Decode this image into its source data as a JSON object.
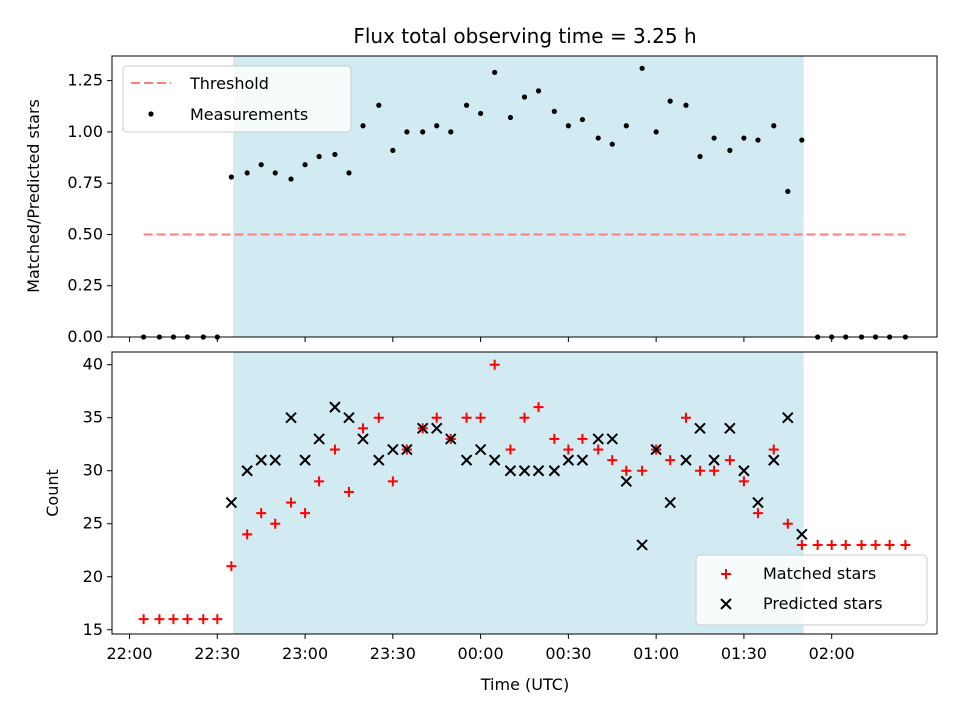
{
  "chart_data": [
    {
      "type": "scatter",
      "title": "Flux total observing time = 3.25 h",
      "ylabel": "Matched/Predicted stars",
      "ylim": [
        0,
        1.37
      ],
      "yticks": [
        "0.00",
        "0.25",
        "0.50",
        "0.75",
        "1.00",
        "1.25"
      ],
      "xlim_hours": [
        21.9,
        26.6
      ],
      "shaded_span_hours": [
        22.59,
        25.84
      ],
      "shade_color": "#add8e6",
      "legend_location": "upper left",
      "threshold": {
        "name": "Threshold",
        "value": 0.5,
        "x_range_hours": [
          22.08,
          26.42
        ],
        "color": "#ff7f7f"
      },
      "series": [
        {
          "name": "Measurements",
          "color": "#000000",
          "x_hours": [
            22.08,
            22.17,
            22.25,
            22.33,
            22.42,
            22.5,
            22.58,
            22.67,
            22.75,
            22.83,
            22.92,
            23.0,
            23.08,
            23.17,
            23.25,
            23.33,
            23.42,
            23.5,
            23.58,
            23.67,
            23.75,
            23.83,
            23.92,
            24.0,
            24.08,
            24.17,
            24.25,
            24.33,
            24.42,
            24.5,
            24.58,
            24.67,
            24.75,
            24.83,
            24.92,
            25.0,
            25.08,
            25.17,
            25.25,
            25.33,
            25.42,
            25.5,
            25.58,
            25.67,
            25.75,
            25.83,
            25.92,
            26.0,
            26.08,
            26.17,
            26.25,
            26.33,
            26.42
          ],
          "y": [
            0,
            0,
            0,
            0,
            0,
            0,
            0.78,
            0.8,
            0.84,
            0.8,
            0.77,
            0.84,
            0.88,
            0.89,
            0.8,
            1.03,
            1.13,
            0.91,
            1.0,
            1.0,
            1.03,
            1.0,
            1.13,
            1.09,
            1.29,
            1.07,
            1.17,
            1.2,
            1.1,
            1.03,
            1.06,
            0.97,
            0.94,
            1.03,
            1.31,
            1.0,
            1.15,
            1.13,
            0.88,
            0.97,
            0.91,
            0.97,
            0.96,
            1.03,
            0.71,
            0.96,
            0,
            0,
            0,
            0,
            0,
            0,
            0
          ]
        }
      ]
    },
    {
      "type": "scatter",
      "xlabel": "Time (UTC)",
      "ylabel": "Count",
      "ylim": [
        14.6,
        41.2
      ],
      "yticks": [
        "15",
        "20",
        "25",
        "30",
        "35",
        "40"
      ],
      "xticks_hours": [
        22.0,
        22.5,
        23.0,
        23.5,
        24.0,
        24.5,
        25.0,
        25.5,
        26.0
      ],
      "xtick_labels": [
        "22:00",
        "22:30",
        "23:00",
        "23:30",
        "00:00",
        "00:30",
        "01:00",
        "01:30",
        "02:00"
      ],
      "xlim_hours": [
        21.9,
        26.6
      ],
      "shaded_span_hours": [
        22.59,
        25.84
      ],
      "legend_location": "lower right",
      "series": [
        {
          "name": "Matched stars",
          "marker": "plus",
          "color": "#ff0000",
          "x_hours": [
            22.08,
            22.17,
            22.25,
            22.33,
            22.42,
            22.5,
            22.58,
            22.67,
            22.75,
            22.83,
            22.92,
            23.0,
            23.08,
            23.17,
            23.25,
            23.33,
            23.42,
            23.5,
            23.58,
            23.67,
            23.75,
            23.83,
            23.92,
            24.0,
            24.08,
            24.17,
            24.25,
            24.33,
            24.42,
            24.5,
            24.58,
            24.67,
            24.75,
            24.83,
            24.92,
            25.0,
            25.08,
            25.17,
            25.25,
            25.33,
            25.42,
            25.5,
            25.58,
            25.67,
            25.75,
            25.83,
            25.92,
            26.0,
            26.08,
            26.17,
            26.25,
            26.33,
            26.42
          ],
          "y": [
            16,
            16,
            16,
            16,
            16,
            16,
            21,
            24,
            26,
            25,
            27,
            26,
            29,
            32,
            28,
            34,
            35,
            29,
            32,
            34,
            35,
            33,
            35,
            35,
            40,
            32,
            35,
            36,
            33,
            32,
            33,
            32,
            31,
            30,
            30,
            32,
            31,
            35,
            30,
            30,
            31,
            29,
            26,
            32,
            25,
            23,
            23,
            23,
            23,
            23,
            23,
            23,
            23
          ]
        },
        {
          "name": "Predicted stars",
          "marker": "x",
          "color": "#000000",
          "x_hours": [
            22.58,
            22.67,
            22.75,
            22.83,
            22.92,
            23.0,
            23.08,
            23.17,
            23.25,
            23.33,
            23.42,
            23.5,
            23.58,
            23.67,
            23.75,
            23.83,
            23.92,
            24.0,
            24.08,
            24.17,
            24.25,
            24.33,
            24.42,
            24.5,
            24.58,
            24.67,
            24.75,
            24.83,
            24.92,
            25.0,
            25.08,
            25.17,
            25.25,
            25.33,
            25.42,
            25.5,
            25.58,
            25.67,
            25.75,
            25.83
          ],
          "y": [
            27,
            30,
            31,
            31,
            35,
            31,
            33,
            36,
            35,
            33,
            31,
            32,
            32,
            34,
            34,
            33,
            31,
            32,
            31,
            30,
            30,
            30,
            30,
            31,
            31,
            33,
            33,
            29,
            23,
            32,
            27,
            31,
            34,
            31,
            34,
            30,
            27,
            31,
            35,
            24
          ]
        }
      ]
    }
  ]
}
